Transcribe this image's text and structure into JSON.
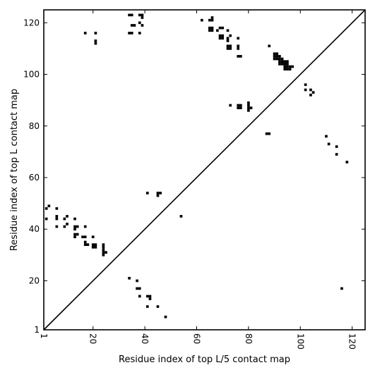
{
  "chart_data": {
    "type": "scatter",
    "title": "",
    "xlabel": "Residue index of top L/5 contact map",
    "ylabel": "Residue index of top L contact map",
    "xlim": [
      1,
      125
    ],
    "ylim": [
      1,
      125
    ],
    "x_ticks": [
      1,
      20,
      40,
      60,
      80,
      100,
      120
    ],
    "y_ticks": [
      1,
      20,
      40,
      60,
      80,
      100,
      120
    ],
    "x_tick_labels": [
      "1",
      "20",
      "40",
      "60",
      "80",
      "100",
      "120"
    ],
    "y_tick_labels": [
      "1",
      "20",
      "40",
      "60",
      "80",
      "100",
      "120"
    ],
    "x_tick_rotation": "rotated 90°",
    "grid": false,
    "diagonal_line": true,
    "marker": "square",
    "colors": {
      "marker": "#000000",
      "axes": "#000000",
      "background": "#ffffff"
    },
    "series": [
      {
        "name": "",
        "points": [
          [
            2,
            48
          ],
          [
            3,
            49
          ],
          [
            2,
            44
          ],
          [
            6,
            48
          ],
          [
            6,
            45
          ],
          [
            6,
            44
          ],
          [
            6,
            41
          ],
          [
            9,
            44
          ],
          [
            10,
            45
          ],
          [
            9,
            41
          ],
          [
            10,
            42
          ],
          [
            13,
            44
          ],
          [
            13,
            41
          ],
          [
            14,
            41
          ],
          [
            13,
            40
          ],
          [
            13,
            38
          ],
          [
            14,
            38
          ],
          [
            13,
            37
          ],
          [
            16,
            37
          ],
          [
            17,
            37
          ],
          [
            17,
            41
          ],
          [
            17,
            35
          ],
          [
            17,
            34
          ],
          [
            18,
            34
          ],
          [
            20,
            37
          ],
          [
            20,
            34
          ],
          [
            21,
            34
          ],
          [
            20,
            33
          ],
          [
            21,
            33
          ],
          [
            24,
            34
          ],
          [
            24,
            33
          ],
          [
            24,
            32
          ],
          [
            24,
            31
          ],
          [
            25,
            31
          ],
          [
            24,
            30
          ],
          [
            17,
            116
          ],
          [
            21,
            116
          ],
          [
            21,
            113
          ],
          [
            21,
            112
          ],
          [
            34,
            123
          ],
          [
            35,
            123
          ],
          [
            38,
            123
          ],
          [
            39,
            123
          ],
          [
            39,
            122
          ],
          [
            35,
            119
          ],
          [
            36,
            119
          ],
          [
            38,
            120
          ],
          [
            39,
            119
          ],
          [
            34,
            116
          ],
          [
            35,
            116
          ],
          [
            38,
            116
          ],
          [
            41,
            54
          ],
          [
            45,
            54
          ],
          [
            46,
            54
          ],
          [
            45,
            53
          ],
          [
            54,
            45
          ],
          [
            34,
            21
          ],
          [
            37,
            20
          ],
          [
            37,
            17
          ],
          [
            38,
            17
          ],
          [
            38,
            14
          ],
          [
            41,
            14
          ],
          [
            42,
            14
          ],
          [
            42,
            13
          ],
          [
            41,
            10
          ],
          [
            45,
            10
          ],
          [
            48,
            6
          ],
          [
            62,
            121
          ],
          [
            65,
            121
          ],
          [
            66,
            121
          ],
          [
            66,
            122
          ],
          [
            65,
            118
          ],
          [
            66,
            118
          ],
          [
            65,
            117
          ],
          [
            66,
            117
          ],
          [
            68,
            117
          ],
          [
            69,
            118
          ],
          [
            70,
            118
          ],
          [
            69,
            115
          ],
          [
            70,
            115
          ],
          [
            69,
            114
          ],
          [
            70,
            114
          ],
          [
            72,
            117
          ],
          [
            72,
            114
          ],
          [
            73,
            115
          ],
          [
            72,
            113
          ],
          [
            72,
            111
          ],
          [
            73,
            111
          ],
          [
            72,
            110
          ],
          [
            73,
            110
          ],
          [
            76,
            114
          ],
          [
            76,
            111
          ],
          [
            76,
            110
          ],
          [
            76,
            107
          ],
          [
            77,
            107
          ],
          [
            73,
            88
          ],
          [
            76,
            88
          ],
          [
            77,
            88
          ],
          [
            76,
            87
          ],
          [
            77,
            87
          ],
          [
            80,
            89
          ],
          [
            80,
            88
          ],
          [
            81,
            87
          ],
          [
            80,
            87
          ],
          [
            80,
            86
          ],
          [
            87,
            77
          ],
          [
            88,
            77
          ],
          [
            88,
            111
          ],
          [
            90,
            108
          ],
          [
            91,
            108
          ],
          [
            90,
            107
          ],
          [
            91,
            107
          ],
          [
            92,
            107
          ],
          [
            90,
            106
          ],
          [
            91,
            106
          ],
          [
            92,
            106
          ],
          [
            93,
            106
          ],
          [
            92,
            105
          ],
          [
            93,
            105
          ],
          [
            92,
            104
          ],
          [
            93,
            104
          ],
          [
            94,
            105
          ],
          [
            95,
            105
          ],
          [
            94,
            104
          ],
          [
            95,
            104
          ],
          [
            94,
            103
          ],
          [
            95,
            103
          ],
          [
            96,
            103
          ],
          [
            97,
            103
          ],
          [
            94,
            102
          ],
          [
            95,
            102
          ],
          [
            96,
            102
          ],
          [
            102,
            96
          ],
          [
            102,
            94
          ],
          [
            104,
            94
          ],
          [
            104,
            92
          ],
          [
            105,
            93
          ],
          [
            110,
            76
          ],
          [
            111,
            73
          ],
          [
            114,
            72
          ],
          [
            114,
            69
          ],
          [
            118,
            66
          ],
          [
            116,
            17
          ]
        ]
      }
    ]
  }
}
